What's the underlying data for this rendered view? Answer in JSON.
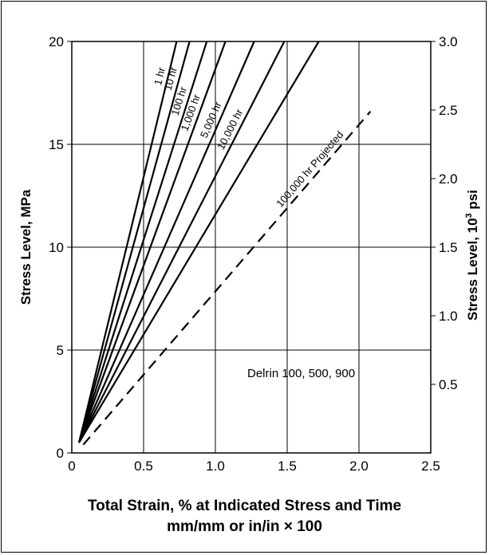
{
  "chart_data": {
    "type": "line",
    "xlabel_line1": "Total Strain, % at Indicated Stress and Time",
    "xlabel_line2": "mm/mm or in/in × 100",
    "ylabel_left": "Stress Level, MPa",
    "ylabel_right_main": "Stress Level, 10",
    "ylabel_right_sup": "3",
    "ylabel_right_unit": " psi",
    "xlim": [
      0,
      2.5
    ],
    "ylim_left": [
      0,
      20
    ],
    "ylim_right": [
      0,
      3.0
    ],
    "x_ticks": [
      "0",
      "0.5",
      "1.0",
      "1.5",
      "2.0",
      "2.5"
    ],
    "y_left_ticks": [
      "0",
      "5",
      "10",
      "15",
      "20"
    ],
    "y_right_ticks": [
      "0.5",
      "1.0",
      "1.5",
      "2.0",
      "2.5",
      "3.0"
    ],
    "grid": true,
    "annotation": "Delrin 100, 500, 900",
    "series": [
      {
        "name": "1 hr",
        "style": "solid",
        "x": [
          0.05,
          0.73
        ],
        "y": [
          0.5,
          20
        ]
      },
      {
        "name": "10 hr",
        "style": "solid",
        "x": [
          0.05,
          0.82
        ],
        "y": [
          0.5,
          20
        ]
      },
      {
        "name": "100 hr",
        "style": "solid",
        "x": [
          0.05,
          0.94
        ],
        "y": [
          0.5,
          20
        ]
      },
      {
        "name": "1,000 hr",
        "style": "solid",
        "x": [
          0.05,
          1.07
        ],
        "y": [
          0.5,
          20
        ]
      },
      {
        "name": "5,000 hr",
        "style": "solid",
        "x": [
          0.05,
          1.27
        ],
        "y": [
          0.5,
          20
        ]
      },
      {
        "name": "10,000 hr",
        "style": "solid",
        "x": [
          0.05,
          1.48
        ],
        "y": [
          0.5,
          20
        ]
      },
      {
        "name": "10,000 hr",
        "style": "solid",
        "x": [
          0.05,
          1.72
        ],
        "y": [
          0.5,
          20
        ]
      },
      {
        "name": "100,000 hr Projected",
        "style": "dashed",
        "x": [
          0.08,
          2.08
        ],
        "y": [
          0.4,
          16.6
        ]
      }
    ],
    "curve_labels": [
      {
        "text": "1 hr",
        "series": 0
      },
      {
        "text": "10 hr",
        "series": 1
      },
      {
        "text": "100 hr",
        "series": 2
      },
      {
        "text": "1,000 hr",
        "series": 3
      },
      {
        "text": "5,000 hr",
        "series": 4
      },
      {
        "text": "10,000 hr",
        "series": 5
      },
      {
        "text": "100,000 hr Projected",
        "series": 7
      }
    ]
  }
}
